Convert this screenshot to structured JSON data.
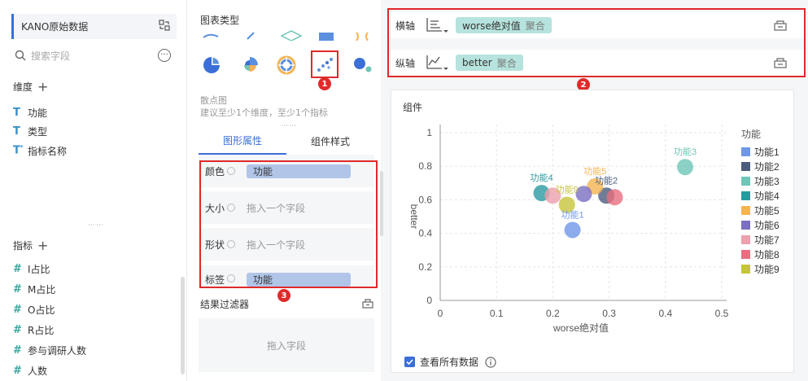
{
  "left": {
    "dataset": "KANO原始数据",
    "search_placeholder": "搜索字段",
    "dimensions_title": "维度",
    "dimensions": [
      "功能",
      "类型",
      "指标名称"
    ],
    "measures_title": "指标",
    "measures": [
      "I占比",
      "M占比",
      "O占比",
      "R占比",
      "参与调研人数",
      "人数"
    ]
  },
  "mid": {
    "chart_type_title": "图表类型",
    "selected_type_name": "散点图",
    "selected_type_hint": "建议至少1个维度，至少1个指标",
    "tabs": [
      "图形属性",
      "组件样式"
    ],
    "props": [
      {
        "label": "颜色",
        "value": "功能"
      },
      {
        "label": "大小",
        "placeholder": "拖入一个字段"
      },
      {
        "label": "形状",
        "placeholder": "拖入一个字段"
      },
      {
        "label": "标签",
        "value": "功能"
      }
    ],
    "filter_title": "结果过滤器",
    "filter_placeholder": "拖入字段"
  },
  "axes": {
    "x_label": "横轴",
    "x_field": "worse绝对值",
    "x_agg": "聚合",
    "y_label": "纵轴",
    "y_field": "better",
    "y_agg": "聚合"
  },
  "badges": [
    "1",
    "2",
    "3"
  ],
  "chart_card": {
    "title": "组件",
    "show_all_label": "查看所有数据",
    "info_icon": "info-icon"
  },
  "chart_data": {
    "type": "scatter",
    "xlabel": "worse绝对值",
    "ylabel": "better",
    "xlim": [
      0,
      0.5
    ],
    "ylim": [
      0,
      1
    ],
    "x_ticks": [
      "0",
      "0.1",
      "0.2",
      "0.3",
      "0.4",
      "0.5"
    ],
    "y_ticks": [
      "0",
      "0.2",
      "0.4",
      "0.6",
      "0.8",
      "1"
    ],
    "grid": true,
    "legend_title": "功能",
    "legend_position": "right",
    "series": [
      {
        "name": "功能1",
        "color": "#6f97e8",
        "x": 0.235,
        "y": 0.42,
        "label": "功能1"
      },
      {
        "name": "功能2",
        "color": "#4b5d7c",
        "x": 0.295,
        "y": 0.625,
        "label": "功能2"
      },
      {
        "name": "功能3",
        "color": "#6fc5b6",
        "x": 0.435,
        "y": 0.795,
        "label": "功能3"
      },
      {
        "name": "功能4",
        "color": "#2b9aa0",
        "x": 0.18,
        "y": 0.64,
        "label": "功能4"
      },
      {
        "name": "功能5",
        "color": "#f4b451",
        "x": 0.275,
        "y": 0.68,
        "label": "功能5"
      },
      {
        "name": "功能6",
        "color": "#7a6fc4",
        "x": 0.255,
        "y": 0.635,
        "label": ""
      },
      {
        "name": "功能7",
        "color": "#eda0ad",
        "x": 0.2,
        "y": 0.625,
        "label": ""
      },
      {
        "name": "功能8",
        "color": "#e86f7f",
        "x": 0.31,
        "y": 0.615,
        "label": ""
      },
      {
        "name": "功能9",
        "color": "#c5c43a",
        "x": 0.225,
        "y": 0.57,
        "label": "功能9"
      }
    ]
  }
}
